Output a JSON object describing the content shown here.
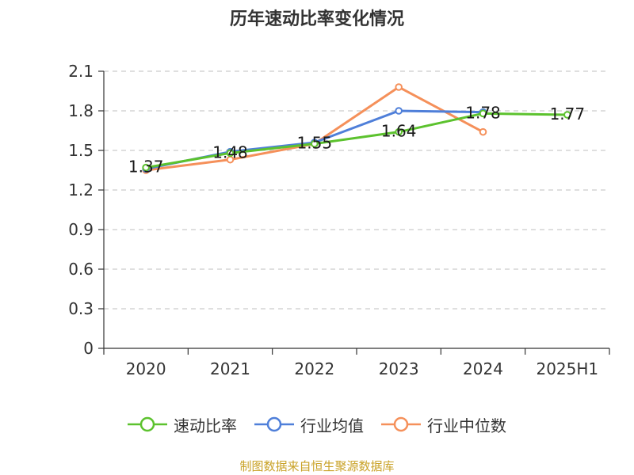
{
  "chart_data": {
    "type": "line",
    "title": "历年速动比率变化情况",
    "categories": [
      "2020",
      "2021",
      "2022",
      "2023",
      "2024",
      "2025H1"
    ],
    "yticks": [
      "0",
      "0.3",
      "0.6",
      "0.9",
      "1.2",
      "1.5",
      "1.8",
      "2.1"
    ],
    "ylim": [
      0,
      2.1
    ],
    "grid": true,
    "legend_position": "bottom",
    "series": [
      {
        "name": "速动比率",
        "color": "#5cc22e",
        "values": [
          1.37,
          1.48,
          1.55,
          1.64,
          1.78,
          1.77
        ]
      },
      {
        "name": "行业均值",
        "color": "#4f7fd9",
        "values": [
          1.36,
          1.49,
          1.56,
          1.8,
          1.79,
          null
        ]
      },
      {
        "name": "行业中位数",
        "color": "#f5905a",
        "values": [
          1.35,
          1.43,
          1.55,
          1.98,
          1.64,
          null
        ]
      }
    ],
    "data_labels": [
      "1.37",
      "1.48",
      "1.55",
      "1.64",
      "1.78",
      "1.77"
    ]
  },
  "source_note": "制图数据来自恒生聚源数据库"
}
